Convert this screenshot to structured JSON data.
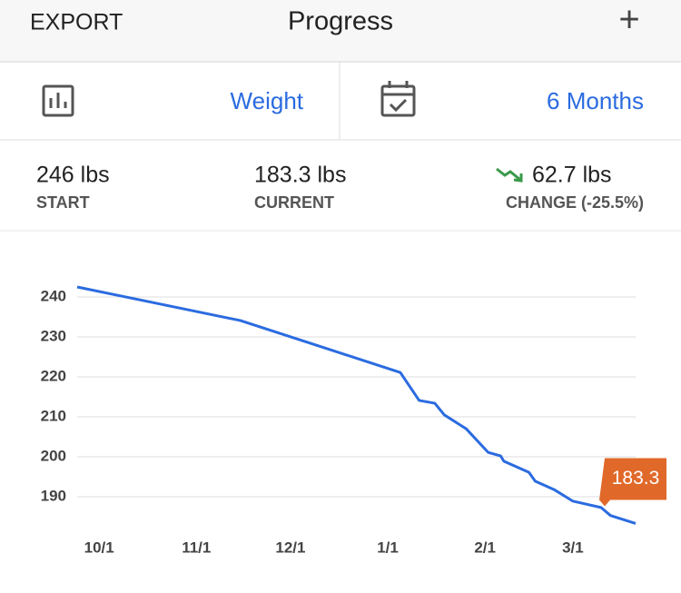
{
  "header": {
    "left": "EXPORT",
    "title": "Progress",
    "add": "+"
  },
  "selectors": {
    "metric": "Weight",
    "range": "6 Months"
  },
  "stats": [
    {
      "value": "246 lbs",
      "label": "START"
    },
    {
      "value": "183.3 lbs",
      "label": "CURRENT"
    },
    {
      "value": "62.7 lbs",
      "label": "CHANGE (-25.5%)"
    }
  ],
  "chart_data": {
    "type": "line",
    "x": [
      "9/24",
      "11/15",
      "12/27",
      "1/5",
      "1/11",
      "1/16",
      "1/19",
      "1/26",
      "2/2",
      "2/6",
      "2/7",
      "2/15",
      "2/17",
      "2/23",
      "3/1",
      "3/10",
      "3/13",
      "3/21"
    ],
    "series": [
      {
        "name": "Weight",
        "color": "#2b6be0",
        "values": [
          242.5,
          234.1,
          223.4,
          221.1,
          214.1,
          213.4,
          210.5,
          207.0,
          201.1,
          200.2,
          198.9,
          196.1,
          193.9,
          191.8,
          188.9,
          187.3,
          185.3,
          183.3
        ]
      }
    ],
    "ylim": [
      181.5,
      245
    ],
    "yticks": [
      190,
      200,
      210,
      220,
      230,
      240
    ],
    "xticks": [
      "10/1",
      "11/1",
      "12/1",
      "1/1",
      "2/1",
      "3/1"
    ],
    "grid": true
  }
}
